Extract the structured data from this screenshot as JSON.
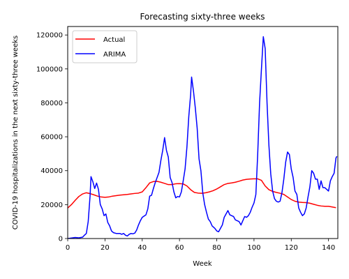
{
  "chart_data": {
    "type": "line",
    "title": "Forecasting sixty-three weeks",
    "xlabel": "Week",
    "ylabel": "COVID-19 hospitalizations in the next sixty-three weeks",
    "xlim": [
      0,
      145
    ],
    "ylim": [
      0,
      125000
    ],
    "xticks": [
      0,
      20,
      40,
      60,
      80,
      100,
      120,
      140
    ],
    "yticks": [
      0,
      20000,
      40000,
      60000,
      80000,
      100000,
      120000
    ],
    "grid": false,
    "legend": "upper-left",
    "series": [
      {
        "name": "Actual",
        "color": "#ff0000",
        "points": [
          [
            0,
            18000
          ],
          [
            2,
            20000
          ],
          [
            4,
            22500
          ],
          [
            6,
            24800
          ],
          [
            8,
            26300
          ],
          [
            10,
            27000
          ],
          [
            12,
            26500
          ],
          [
            14,
            25800
          ],
          [
            16,
            25000
          ],
          [
            18,
            24500
          ],
          [
            20,
            24300
          ],
          [
            22,
            24500
          ],
          [
            24,
            25000
          ],
          [
            26,
            25300
          ],
          [
            28,
            25600
          ],
          [
            30,
            25800
          ],
          [
            32,
            26000
          ],
          [
            34,
            26300
          ],
          [
            36,
            26600
          ],
          [
            38,
            26800
          ],
          [
            40,
            27500
          ],
          [
            42,
            30000
          ],
          [
            44,
            32800
          ],
          [
            46,
            33600
          ],
          [
            48,
            33700
          ],
          [
            50,
            33200
          ],
          [
            52,
            32500
          ],
          [
            54,
            31800
          ],
          [
            56,
            31800
          ],
          [
            58,
            32300
          ],
          [
            60,
            32400
          ],
          [
            62,
            32200
          ],
          [
            64,
            31000
          ],
          [
            66,
            28800
          ],
          [
            68,
            27200
          ],
          [
            70,
            26800
          ],
          [
            72,
            26700
          ],
          [
            74,
            27000
          ],
          [
            76,
            27500
          ],
          [
            78,
            28200
          ],
          [
            80,
            29200
          ],
          [
            82,
            30500
          ],
          [
            84,
            31800
          ],
          [
            86,
            32500
          ],
          [
            88,
            32800
          ],
          [
            90,
            33200
          ],
          [
            92,
            33800
          ],
          [
            94,
            34500
          ],
          [
            96,
            34900
          ],
          [
            98,
            35100
          ],
          [
            100,
            35200
          ],
          [
            102,
            35200
          ],
          [
            104,
            34300
          ],
          [
            106,
            31000
          ],
          [
            108,
            28800
          ],
          [
            110,
            27800
          ],
          [
            112,
            27200
          ],
          [
            114,
            26700
          ],
          [
            116,
            26000
          ],
          [
            118,
            24500
          ],
          [
            120,
            23000
          ],
          [
            122,
            22000
          ],
          [
            124,
            21500
          ],
          [
            126,
            21300
          ],
          [
            128,
            21200
          ],
          [
            130,
            20800
          ],
          [
            132,
            20200
          ],
          [
            134,
            19600
          ],
          [
            136,
            19200
          ],
          [
            138,
            19000
          ],
          [
            140,
            19000
          ],
          [
            142,
            18600
          ],
          [
            144,
            18200
          ]
        ]
      },
      {
        "name": "ARIMA",
        "color": "#0000ff",
        "points": [
          [
            0,
            0
          ],
          [
            2,
            300
          ],
          [
            4,
            600
          ],
          [
            6,
            400
          ],
          [
            8,
            800
          ],
          [
            9,
            2000
          ],
          [
            10,
            3000
          ],
          [
            11,
            10000
          ],
          [
            12,
            25000
          ],
          [
            12.5,
            36500
          ],
          [
            13.5,
            33500
          ],
          [
            14.5,
            29500
          ],
          [
            15.5,
            32700
          ],
          [
            16.5,
            29000
          ],
          [
            17.5,
            20000
          ],
          [
            18.5,
            17500
          ],
          [
            19.5,
            13500
          ],
          [
            20.5,
            14500
          ],
          [
            21.5,
            9500
          ],
          [
            22.5,
            7500
          ],
          [
            23.5,
            4500
          ],
          [
            24.5,
            3500
          ],
          [
            26,
            3000
          ],
          [
            28,
            3000
          ],
          [
            29,
            2500
          ],
          [
            30,
            3000
          ],
          [
            31,
            2000
          ],
          [
            32,
            1500
          ],
          [
            33,
            2500
          ],
          [
            34,
            3000
          ],
          [
            35,
            2800
          ],
          [
            36,
            3200
          ],
          [
            37,
            5000
          ],
          [
            38,
            8000
          ],
          [
            39,
            10500
          ],
          [
            40,
            12500
          ],
          [
            42,
            14000
          ],
          [
            43,
            17500
          ],
          [
            44,
            25000
          ],
          [
            45,
            25500
          ],
          [
            46,
            29500
          ],
          [
            47,
            33000
          ],
          [
            48,
            36000
          ],
          [
            49,
            39000
          ],
          [
            50,
            46000
          ],
          [
            51,
            52000
          ],
          [
            52,
            59500
          ],
          [
            53,
            52000
          ],
          [
            54,
            48000
          ],
          [
            55,
            36000
          ],
          [
            56,
            33000
          ],
          [
            57,
            27500
          ],
          [
            58,
            24000
          ],
          [
            59,
            24800
          ],
          [
            60,
            24500
          ],
          [
            61,
            27500
          ],
          [
            62,
            34000
          ],
          [
            63,
            41000
          ],
          [
            64,
            54000
          ],
          [
            65,
            72000
          ],
          [
            66,
            85000
          ],
          [
            66.5,
            95200
          ],
          [
            67.5,
            87000
          ],
          [
            68.5,
            77000
          ],
          [
            69.5,
            65000
          ],
          [
            70.5,
            47000
          ],
          [
            71.5,
            40000
          ],
          [
            72.5,
            27000
          ],
          [
            73.5,
            20000
          ],
          [
            74.5,
            15500
          ],
          [
            75.5,
            11500
          ],
          [
            76.5,
            10000
          ],
          [
            77.5,
            7500
          ],
          [
            79,
            6000
          ],
          [
            80,
            4500
          ],
          [
            81,
            4000
          ],
          [
            82,
            6000
          ],
          [
            83,
            8000
          ],
          [
            84,
            12500
          ],
          [
            85,
            14500
          ],
          [
            86,
            16500
          ],
          [
            87,
            14000
          ],
          [
            88,
            13500
          ],
          [
            89,
            13000
          ],
          [
            90,
            11000
          ],
          [
            91,
            10500
          ],
          [
            92,
            10000
          ],
          [
            93,
            8000
          ],
          [
            94,
            10500
          ],
          [
            95,
            13000
          ],
          [
            96,
            12500
          ],
          [
            97,
            13500
          ],
          [
            98,
            15500
          ],
          [
            99,
            18500
          ],
          [
            100,
            21000
          ],
          [
            101,
            26000
          ],
          [
            102,
            50000
          ],
          [
            103,
            80000
          ],
          [
            104,
            100000
          ],
          [
            105,
            119000
          ],
          [
            106,
            112000
          ],
          [
            107,
            80000
          ],
          [
            108,
            55000
          ],
          [
            109,
            38000
          ],
          [
            110,
            28000
          ],
          [
            111,
            23500
          ],
          [
            112,
            22000
          ],
          [
            113,
            21500
          ],
          [
            114,
            22000
          ],
          [
            115,
            27000
          ],
          [
            116,
            35000
          ],
          [
            117,
            45000
          ],
          [
            118,
            51000
          ],
          [
            119,
            49500
          ],
          [
            120,
            41000
          ],
          [
            121,
            36000
          ],
          [
            122,
            28000
          ],
          [
            123,
            26000
          ],
          [
            124,
            18000
          ],
          [
            125,
            15500
          ],
          [
            126,
            13500
          ],
          [
            127,
            14500
          ],
          [
            128,
            18000
          ],
          [
            129,
            24500
          ],
          [
            130,
            30500
          ],
          [
            131,
            40000
          ],
          [
            132,
            38500
          ],
          [
            133,
            35000
          ],
          [
            134,
            35000
          ],
          [
            135,
            29000
          ],
          [
            136,
            34000
          ],
          [
            137,
            30000
          ],
          [
            138,
            30000
          ],
          [
            139,
            29000
          ],
          [
            140,
            28000
          ],
          [
            141,
            34000
          ],
          [
            142,
            36500
          ],
          [
            143,
            38500
          ],
          [
            144,
            47500
          ],
          [
            144.5,
            48500
          ]
        ]
      }
    ]
  }
}
